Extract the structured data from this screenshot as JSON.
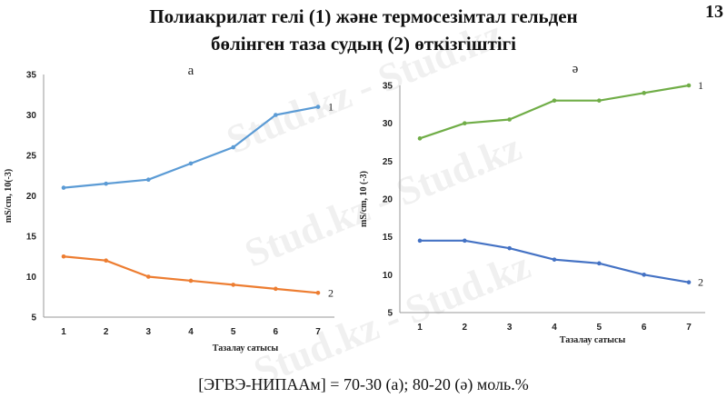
{
  "page": {
    "title_line1": "Полиакрилат гелі (1) және термосезімтал гельден",
    "title_line2": "бөлінген таза судың (2) өткізгіштігі",
    "page_number": "13",
    "caption": "[ЭГВЭ-НИПААм] = 70-30 (а); 80-20 (ә) моль.%",
    "watermark": "Stud.kz - Stud.kz"
  },
  "chart_data": [
    {
      "type": "line",
      "panel_label": "а",
      "xlabel": "Тазалау сатысы",
      "ylabel": "mS/cm, 10(-3)",
      "x": [
        1,
        2,
        3,
        4,
        5,
        6,
        7
      ],
      "xticks": [
        "1",
        "2",
        "3",
        "4",
        "5",
        "6",
        "7"
      ],
      "yticks": [
        "5",
        "10",
        "15",
        "20",
        "25",
        "30",
        "35"
      ],
      "ylim": [
        5,
        35
      ],
      "grid": false,
      "series": [
        {
          "name": "1",
          "color": "#5b9bd5",
          "values": [
            21,
            21.5,
            22,
            24,
            26,
            30,
            31
          ]
        },
        {
          "name": "2",
          "color": "#ed7d31",
          "values": [
            12.5,
            12,
            10,
            9.5,
            9,
            8.5,
            8
          ]
        }
      ]
    },
    {
      "type": "line",
      "panel_label": "ә",
      "xlabel": "Тазалау сатысы",
      "ylabel": "mS/cm, 10 (-3)",
      "x": [
        1,
        2,
        3,
        4,
        5,
        6,
        7
      ],
      "xticks": [
        "1",
        "2",
        "3",
        "4",
        "5",
        "6",
        "7"
      ],
      "yticks": [
        "5",
        "10",
        "15",
        "20",
        "25",
        "30",
        "35"
      ],
      "ylim": [
        5,
        35
      ],
      "grid": false,
      "series": [
        {
          "name": "1",
          "color": "#70ad47",
          "values": [
            28,
            30,
            30.5,
            33,
            33,
            34,
            35
          ]
        },
        {
          "name": "2",
          "color": "#4472c4",
          "values": [
            14.5,
            14.5,
            13.5,
            12,
            11.5,
            10,
            9
          ]
        }
      ]
    }
  ]
}
